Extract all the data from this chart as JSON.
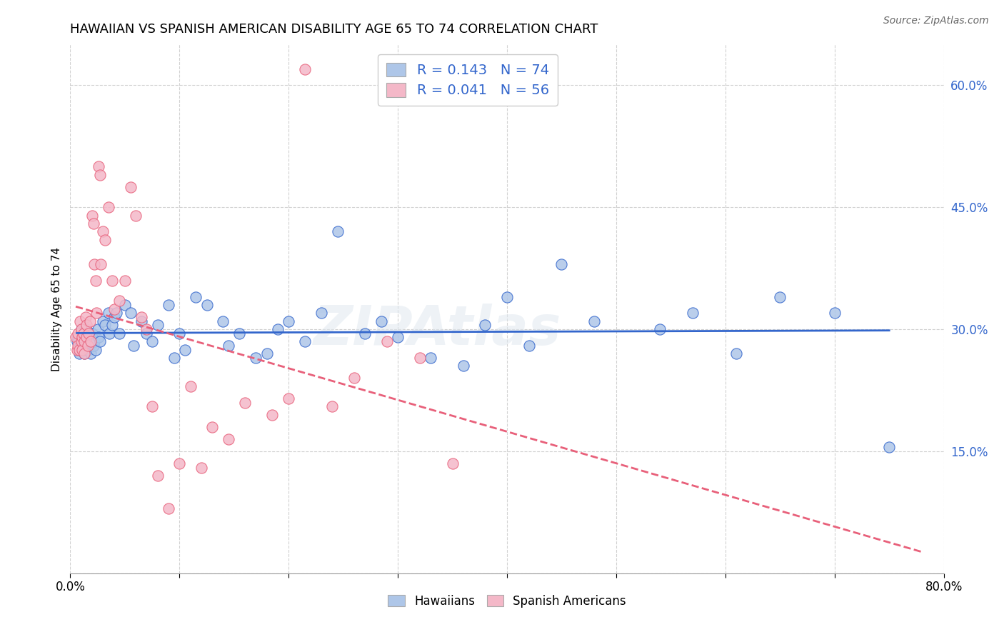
{
  "title": "HAWAIIAN VS SPANISH AMERICAN DISABILITY AGE 65 TO 74 CORRELATION CHART",
  "source": "Source: ZipAtlas.com",
  "ylabel": "Disability Age 65 to 74",
  "xlim": [
    0.0,
    0.8
  ],
  "ylim": [
    0.0,
    0.65
  ],
  "xticks": [
    0.0,
    0.1,
    0.2,
    0.3,
    0.4,
    0.5,
    0.6,
    0.7,
    0.8
  ],
  "xticklabels": [
    "0.0%",
    "",
    "",
    "",
    "",
    "",
    "",
    "",
    "80.0%"
  ],
  "yticks": [
    0.0,
    0.15,
    0.3,
    0.45,
    0.6
  ],
  "yticklabels": [
    "",
    "15.0%",
    "30.0%",
    "45.0%",
    "60.0%"
  ],
  "legend_r_hawaiian": "0.143",
  "legend_n_hawaiian": "74",
  "legend_r_spanish": "0.041",
  "legend_n_spanish": "56",
  "hawaiian_color": "#aec6e8",
  "spanish_color": "#f4b8c8",
  "hawaiian_line_color": "#3366cc",
  "spanish_line_color": "#e8607a",
  "background_color": "#ffffff",
  "grid_color": "#cccccc",
  "hawaiians_x": [
    0.006,
    0.007,
    0.008,
    0.008,
    0.009,
    0.01,
    0.01,
    0.011,
    0.012,
    0.012,
    0.013,
    0.013,
    0.014,
    0.015,
    0.015,
    0.016,
    0.016,
    0.017,
    0.018,
    0.019,
    0.02,
    0.021,
    0.022,
    0.023,
    0.025,
    0.026,
    0.027,
    0.03,
    0.032,
    0.035,
    0.036,
    0.038,
    0.04,
    0.042,
    0.045,
    0.05,
    0.055,
    0.058,
    0.065,
    0.07,
    0.075,
    0.08,
    0.09,
    0.095,
    0.1,
    0.105,
    0.115,
    0.125,
    0.14,
    0.145,
    0.155,
    0.17,
    0.18,
    0.19,
    0.2,
    0.215,
    0.23,
    0.245,
    0.27,
    0.285,
    0.3,
    0.33,
    0.36,
    0.38,
    0.4,
    0.42,
    0.45,
    0.48,
    0.54,
    0.57,
    0.61,
    0.65,
    0.7,
    0.75
  ],
  "hawaiians_y": [
    0.285,
    0.29,
    0.27,
    0.275,
    0.28,
    0.295,
    0.3,
    0.285,
    0.29,
    0.275,
    0.28,
    0.27,
    0.295,
    0.3,
    0.285,
    0.275,
    0.29,
    0.28,
    0.285,
    0.27,
    0.295,
    0.28,
    0.285,
    0.275,
    0.3,
    0.29,
    0.285,
    0.31,
    0.305,
    0.32,
    0.295,
    0.305,
    0.315,
    0.32,
    0.295,
    0.33,
    0.32,
    0.28,
    0.31,
    0.295,
    0.285,
    0.305,
    0.33,
    0.265,
    0.295,
    0.275,
    0.34,
    0.33,
    0.31,
    0.28,
    0.295,
    0.265,
    0.27,
    0.3,
    0.31,
    0.285,
    0.32,
    0.42,
    0.295,
    0.31,
    0.29,
    0.265,
    0.255,
    0.305,
    0.34,
    0.28,
    0.38,
    0.31,
    0.3,
    0.32,
    0.27,
    0.34,
    0.32,
    0.155
  ],
  "spanish_x": [
    0.005,
    0.006,
    0.007,
    0.007,
    0.008,
    0.009,
    0.01,
    0.01,
    0.011,
    0.011,
    0.012,
    0.013,
    0.013,
    0.014,
    0.015,
    0.015,
    0.016,
    0.017,
    0.018,
    0.019,
    0.02,
    0.021,
    0.022,
    0.023,
    0.024,
    0.026,
    0.027,
    0.028,
    0.03,
    0.032,
    0.035,
    0.038,
    0.04,
    0.045,
    0.05,
    0.055,
    0.06,
    0.065,
    0.07,
    0.075,
    0.08,
    0.09,
    0.1,
    0.11,
    0.12,
    0.13,
    0.145,
    0.16,
    0.185,
    0.2,
    0.215,
    0.24,
    0.26,
    0.29,
    0.32,
    0.35
  ],
  "spanish_y": [
    0.29,
    0.275,
    0.295,
    0.28,
    0.275,
    0.31,
    0.3,
    0.285,
    0.29,
    0.275,
    0.295,
    0.285,
    0.27,
    0.315,
    0.305,
    0.29,
    0.28,
    0.295,
    0.31,
    0.285,
    0.44,
    0.43,
    0.38,
    0.36,
    0.32,
    0.5,
    0.49,
    0.38,
    0.42,
    0.41,
    0.45,
    0.36,
    0.325,
    0.335,
    0.36,
    0.475,
    0.44,
    0.315,
    0.3,
    0.205,
    0.12,
    0.08,
    0.135,
    0.23,
    0.13,
    0.18,
    0.165,
    0.21,
    0.195,
    0.215,
    0.62,
    0.205,
    0.24,
    0.285,
    0.265,
    0.135
  ]
}
